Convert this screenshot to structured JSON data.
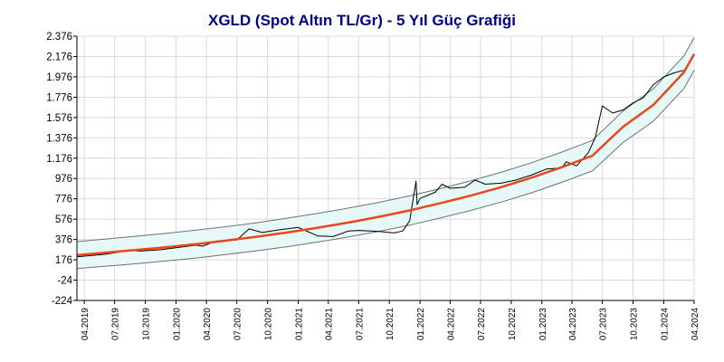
{
  "chart_data": {
    "type": "line",
    "title": "XGLD (Spot Altın TL/Gr) - 5 Yıl Güç Grafiği",
    "xlabel": "",
    "ylabel": "",
    "ylim": [
      -224,
      2376
    ],
    "xlim": [
      "2019-03-10",
      "2024-04-01"
    ],
    "grid": true,
    "y_ticks": [
      -224,
      -24,
      176,
      376,
      576,
      776,
      976,
      1176,
      1376,
      1576,
      1776,
      1976,
      2176,
      2376
    ],
    "y_tick_labels": [
      "-224",
      "-24",
      "176",
      "376",
      "576",
      "776",
      "976",
      "1.176",
      "1.376",
      "1.576",
      "1.776",
      "1.976",
      "2.176",
      "2.376"
    ],
    "x_ticks": [
      "2019-04-01",
      "2019-07-01",
      "2019-10-01",
      "2020-01-01",
      "2020-04-01",
      "2020-07-01",
      "2020-10-01",
      "2021-01-01",
      "2021-04-01",
      "2021-07-01",
      "2021-10-01",
      "2022-01-01",
      "2022-04-01",
      "2022-07-01",
      "2022-10-01",
      "2023-01-01",
      "2023-04-01",
      "2023-07-01",
      "2023-10-01",
      "2024-01-01",
      "2024-04-01"
    ],
    "x_tick_labels": [
      "04.2019",
      "07.2019",
      "10.2019",
      "01.2020",
      "04.2020",
      "07.2020",
      "10.2020",
      "01.2021",
      "04.2021",
      "07.2021",
      "10.2021",
      "01.2022",
      "04.2022",
      "07.2022",
      "10.2022",
      "01.2023",
      "04.2023",
      "07.2023",
      "10.2023",
      "01.2024",
      "04.2024"
    ],
    "series": [
      {
        "role": "price",
        "color": "#000000",
        "x": [
          "2019-03-10",
          "2019-06-01",
          "2019-08-15",
          "2019-09-15",
          "2019-11-15",
          "2020-01-01",
          "2020-03-01",
          "2020-03-20",
          "2020-05-01",
          "2020-07-01",
          "2020-08-07",
          "2020-09-15",
          "2020-11-01",
          "2021-01-01",
          "2021-03-01",
          "2021-04-15",
          "2021-06-01",
          "2021-07-01",
          "2021-09-01",
          "2021-10-15",
          "2021-11-10",
          "2021-12-01",
          "2021-12-20",
          "2021-12-23",
          "2022-01-01",
          "2022-02-15",
          "2022-03-08",
          "2022-04-01",
          "2022-05-15",
          "2022-06-15",
          "2022-07-15",
          "2022-09-01",
          "2022-10-15",
          "2022-12-01",
          "2023-01-15",
          "2023-03-01",
          "2023-03-15",
          "2023-04-15",
          "2023-05-20",
          "2023-06-10",
          "2023-07-01",
          "2023-08-01",
          "2023-09-01",
          "2023-10-01",
          "2023-11-01",
          "2023-12-01",
          "2024-01-01",
          "2024-02-01",
          "2024-03-01"
        ],
        "y": [
          205,
          230,
          268,
          262,
          275,
          295,
          320,
          310,
          360,
          372,
          480,
          445,
          470,
          495,
          410,
          405,
          460,
          465,
          455,
          440,
          460,
          560,
          950,
          720,
          780,
          840,
          920,
          880,
          890,
          960,
          920,
          930,
          960,
          1010,
          1070,
          1080,
          1140,
          1100,
          1230,
          1380,
          1690,
          1620,
          1650,
          1720,
          1770,
          1900,
          1975,
          2015,
          2040
        ]
      },
      {
        "role": "trend",
        "color": "#e8481a",
        "x": [
          "2019-03-10",
          "2019-06-01",
          "2019-09-01",
          "2019-12-01",
          "2020-03-01",
          "2020-06-01",
          "2020-09-01",
          "2020-12-01",
          "2021-03-01",
          "2021-06-01",
          "2021-09-01",
          "2021-12-01",
          "2022-03-01",
          "2022-06-01",
          "2022-09-01",
          "2022-12-01",
          "2023-03-01",
          "2023-06-01",
          "2023-09-01",
          "2023-12-01",
          "2024-03-01",
          "2024-04-01"
        ],
        "y": [
          222,
          246,
          272,
          300,
          331,
          366,
          404,
          446,
          492,
          543,
          600,
          662,
          731,
          807,
          891,
          984,
          1087,
          1200,
          1485,
          1700,
          2020,
          2200
        ]
      },
      {
        "role": "upper-band",
        "color": "#707070",
        "x": [
          "2019-03-10",
          "2019-06-01",
          "2019-09-01",
          "2019-12-01",
          "2020-03-01",
          "2020-06-01",
          "2020-09-01",
          "2020-12-01",
          "2021-03-01",
          "2021-06-01",
          "2021-09-01",
          "2021-12-01",
          "2022-03-01",
          "2022-06-01",
          "2022-09-01",
          "2022-12-01",
          "2023-03-01",
          "2023-06-01",
          "2023-09-01",
          "2023-12-01",
          "2024-03-01",
          "2024-04-01"
        ],
        "y": [
          355,
          380,
          407,
          436,
          468,
          503,
          542,
          586,
          633,
          685,
          742,
          805,
          875,
          952,
          1037,
          1131,
          1235,
          1350,
          1640,
          1860,
          2180,
          2362
        ]
      },
      {
        "role": "lower-band",
        "color": "#707070",
        "x": [
          "2019-03-10",
          "2019-06-01",
          "2019-09-01",
          "2019-12-01",
          "2020-03-01",
          "2020-06-01",
          "2020-09-01",
          "2020-12-01",
          "2021-03-01",
          "2021-06-01",
          "2021-09-01",
          "2021-12-01",
          "2022-03-01",
          "2022-06-01",
          "2022-09-01",
          "2022-12-01",
          "2023-03-01",
          "2023-06-01",
          "2023-09-01",
          "2023-12-01",
          "2024-03-01",
          "2024-04-01"
        ],
        "y": [
          90,
          112,
          137,
          164,
          194,
          229,
          266,
          306,
          351,
          401,
          456,
          517,
          586,
          661,
          744,
          836,
          938,
          1050,
          1330,
          1540,
          1860,
          2040
        ]
      }
    ],
    "colors": {
      "band_fill": "#e6f8f8",
      "grid": "#d9d9d9",
      "axis": "#000000",
      "title": "#000080"
    }
  }
}
